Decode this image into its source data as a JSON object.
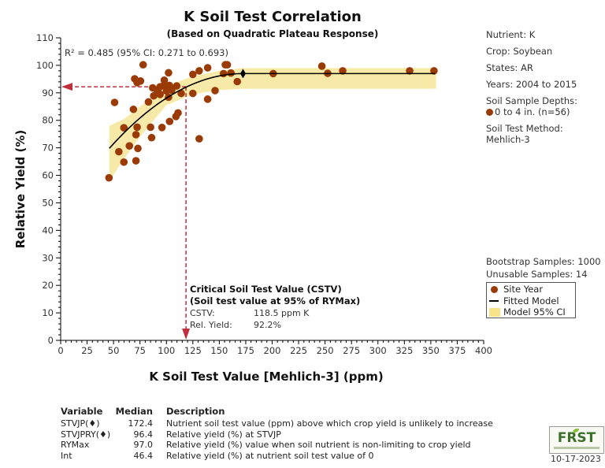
{
  "chart_data": {
    "type": "scatter",
    "title": "K Soil Test Correlation",
    "subtitle": "(Based on Quadratic Plateau Response)",
    "xlabel": "K Soil Test Value [Mehlich-3] (ppm)",
    "ylabel": "Relative Yield (%)",
    "xlim": [
      0,
      400
    ],
    "ylim": [
      0,
      110
    ],
    "xticks": [
      0,
      25,
      50,
      75,
      100,
      125,
      150,
      175,
      200,
      225,
      250,
      275,
      300,
      325,
      350,
      375,
      400
    ],
    "yticks": [
      0,
      10,
      20,
      30,
      40,
      50,
      60,
      70,
      80,
      90,
      100,
      110
    ],
    "grid": false,
    "r2_annotation": "R² = 0.485 (95% CI: 0.271 to 0.693)",
    "points_color": "#9a3b06",
    "curve_color": "#000000",
    "ci_color": "#f7eaa8",
    "cstv_line_color": "#c0303a",
    "points": [
      [
        78,
        100.2
      ],
      [
        70,
        95.1
      ],
      [
        75.5,
        94.3
      ],
      [
        72.3,
        93.7
      ],
      [
        102,
        97.3
      ],
      [
        98,
        94.6
      ],
      [
        87,
        91.8
      ],
      [
        94,
        92.2
      ],
      [
        102.8,
        92.7
      ],
      [
        109.7,
        92.5
      ],
      [
        114,
        89.8
      ],
      [
        94,
        89.4
      ],
      [
        88,
        88.9
      ],
      [
        102,
        88.4
      ],
      [
        83,
        86.7
      ],
      [
        51,
        86.5
      ],
      [
        68.8,
        84
      ],
      [
        111,
        82.7
      ],
      [
        109,
        81.4
      ],
      [
        103,
        79.6
      ],
      [
        59.8,
        77.3
      ],
      [
        72.3,
        77.5
      ],
      [
        85,
        77.5
      ],
      [
        95.8,
        77.4
      ],
      [
        71.2,
        74.8
      ],
      [
        86,
        73.7
      ],
      [
        131,
        73.3
      ],
      [
        65,
        70.7
      ],
      [
        73,
        69.8
      ],
      [
        55,
        68.6
      ],
      [
        59.8,
        64.8
      ],
      [
        71.2,
        65.3
      ],
      [
        45.7,
        59.1
      ],
      [
        125,
        96.7
      ],
      [
        131,
        98
      ],
      [
        139,
        99.1
      ],
      [
        125,
        89.8
      ],
      [
        139,
        87.7
      ],
      [
        146,
        90.8
      ],
      [
        155.7,
        100.2
      ],
      [
        157.6,
        100.2
      ],
      [
        154,
        97
      ],
      [
        161,
        97.2
      ],
      [
        167,
        94.1
      ],
      [
        201,
        97
      ],
      [
        247,
        99.7
      ],
      [
        252.5,
        97.1
      ],
      [
        266.7,
        98
      ],
      [
        330,
        98
      ],
      [
        353,
        98
      ],
      [
        98,
        93
      ],
      [
        105,
        91
      ],
      [
        92,
        90.5
      ],
      [
        100,
        90.7
      ],
      [
        91,
        91
      ],
      [
        100,
        92
      ]
    ],
    "model": {
      "rymax": 97.0,
      "intercept": 46.4,
      "join_point": [
        172.4,
        96.4
      ],
      "x_start": 46,
      "x_end": 355
    },
    "ci_band": {
      "x": [
        46,
        60,
        75,
        100,
        125,
        150,
        172,
        200,
        355
      ],
      "lower": [
        58,
        66,
        74,
        85.5,
        89.5,
        91,
        91.5,
        91.5,
        91.5
      ],
      "upper": [
        78,
        80.5,
        85,
        92.5,
        96,
        98,
        99,
        99,
        99
      ]
    },
    "cstv": {
      "x": 118.5,
      "y": 92.2,
      "title": "Critical Soil Test Value (CSTV)",
      "subtitle": "(Soil test value at 95% of RYMax)",
      "cstv_label": "CSTV:",
      "cstv_value": "118.5 ppm K",
      "ry_label": "Rel. Yield:",
      "ry_value": "92.2%"
    },
    "legend": {
      "placement": "right",
      "items": [
        "Site Year",
        "Fitted Model",
        "Model 95% CI"
      ]
    }
  },
  "info": {
    "nutrient": "Nutrient: K",
    "crop": "Crop: Soybean",
    "states": "States: AR",
    "years": "Years: 2004 to 2015",
    "depths_label": "Soil Sample Depths:",
    "depth_item": "0 to 4 in. (n=56)",
    "method_label": "Soil Test Method:",
    "method_value": "Mehlich-3",
    "bootstrap": "Bootstrap Samples: 1000",
    "unusable": "Unusable Samples: 14"
  },
  "table": {
    "headers": [
      "Variable",
      "Median",
      "Description"
    ],
    "rows": [
      [
        "STVJP(♦)",
        "172.4",
        "Nutrient soil test value (ppm) above which crop yield is unlikely to increase"
      ],
      [
        "STVJPRY(♦)",
        "96.4",
        "Relative yield (%) at STVJP"
      ],
      [
        "RYMax",
        "97.0",
        "Relative yield (%) value when soil nutrient is non-limiting to crop yield"
      ],
      [
        "Int",
        "46.4",
        "Relative yield (%) at nutrient soil test value of 0"
      ]
    ]
  },
  "footer": {
    "logo": "FRST",
    "date": "10-17-2023"
  }
}
